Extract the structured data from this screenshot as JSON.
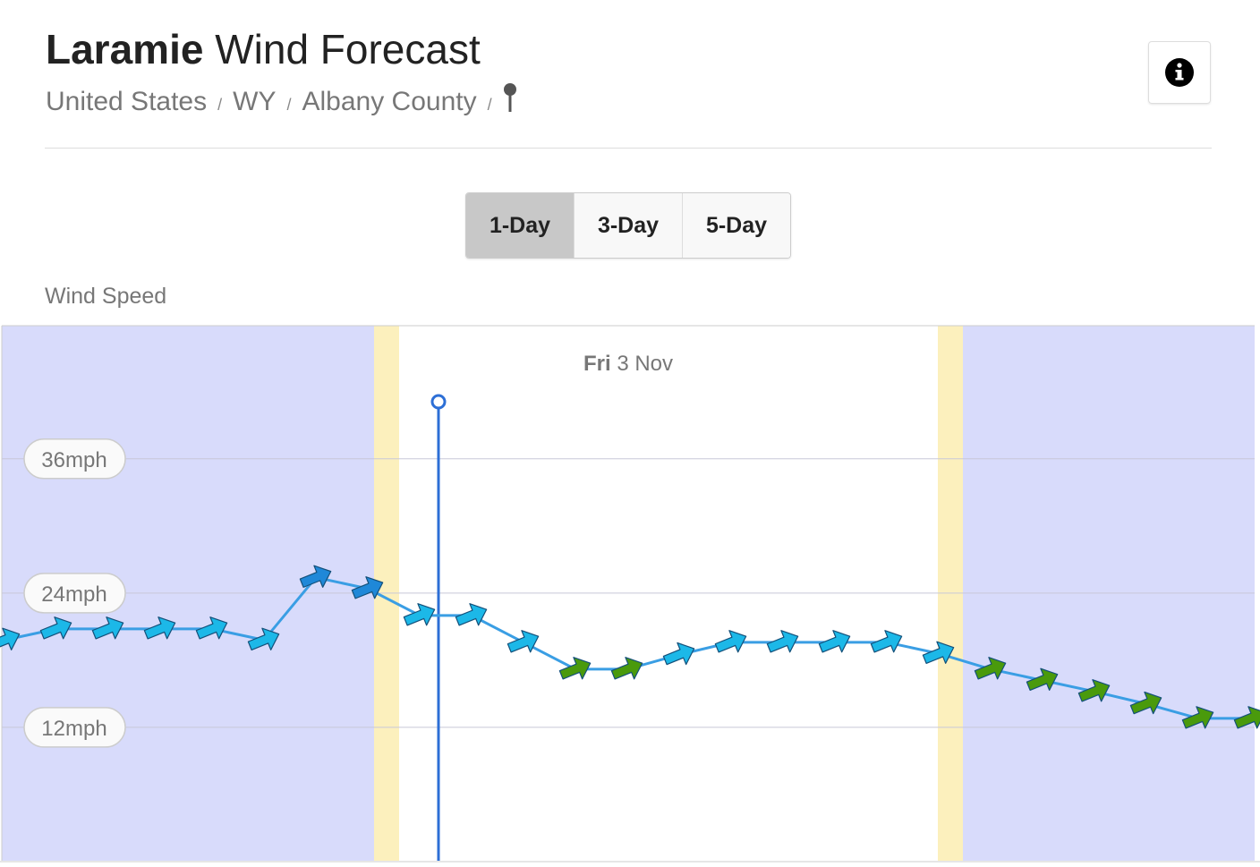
{
  "header": {
    "title_bold": "Laramie",
    "title_rest": "Wind Forecast",
    "breadcrumbs": [
      "United States",
      "WY",
      "Albany County"
    ]
  },
  "tabs": {
    "items": [
      "1-Day",
      "3-Day",
      "5-Day"
    ],
    "active": 0
  },
  "chart_data": {
    "type": "line",
    "y_label": "Wind Speed",
    "date_day": "Fri",
    "date_rest": "3 Nov",
    "categories": [
      null,
      null,
      null,
      null,
      null,
      null,
      null,
      null,
      null,
      null,
      null,
      null,
      null,
      null,
      null,
      null,
      null,
      null,
      null,
      null,
      null,
      null,
      null,
      null,
      null
    ],
    "series": [
      {
        "name": null,
        "color": "#3a9ee4",
        "values": [
          19.8,
          20.8,
          20.8,
          20.8,
          20.8,
          19.8,
          25.4,
          24.4,
          22,
          22,
          19.6,
          17.2,
          17.2,
          18.5,
          19.6,
          19.6,
          19.6,
          19.6,
          18.6,
          17.2,
          16.2,
          15.2,
          14.1,
          12.8,
          12.8
        ],
        "colors": [
          "#1cb8e8",
          "#1cb8e8",
          "#1cb8e8",
          "#1cb8e8",
          "#1cb8e8",
          "#1cb8e8",
          "#1f88d8",
          "#1f88d8",
          "#1cb8e8",
          "#1cb8e8",
          "#1cb8e8",
          "#4a9a0c",
          "#4a9a0c",
          "#1cb8e8",
          "#1cb8e8",
          "#1cb8e8",
          "#1cb8e8",
          "#1cb8e8",
          "#1cb8e8",
          "#4a9a0c",
          "#4a9a0c",
          "#4a9a0c",
          "#4a9a0c",
          "#4a9a0c",
          "#4a9a0c"
        ]
      }
    ],
    "ylim": [
      0,
      47.9
    ],
    "yticks": [
      {
        "value": 12,
        "label": "12mph"
      },
      {
        "value": 24,
        "label": "24mph"
      },
      {
        "value": 36,
        "label": "36mph"
      }
    ],
    "grid": true
  }
}
